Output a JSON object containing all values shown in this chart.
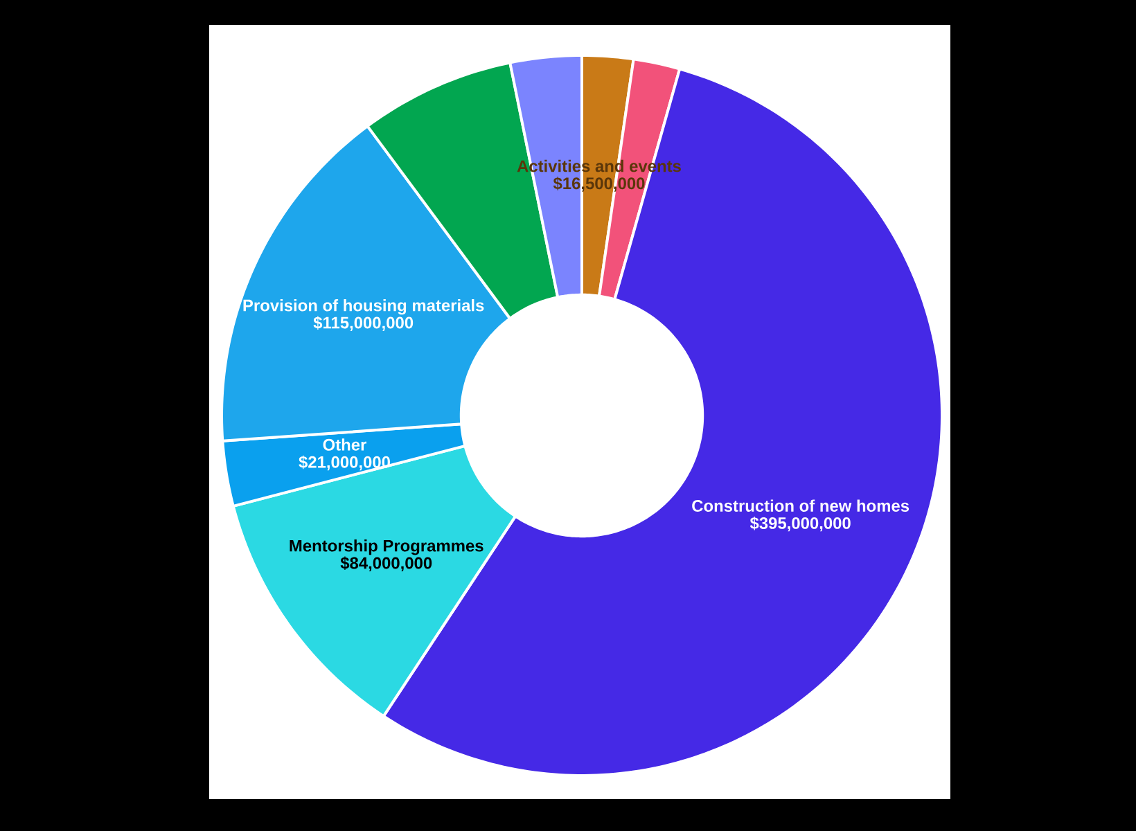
{
  "chart_data": {
    "type": "donut",
    "categories": [
      "Activities and events",
      null,
      "Construction of new homes",
      "Mentorship Programmes",
      "Other",
      "Provision of housing materials",
      null,
      null
    ],
    "values": [
      16500000,
      15000000,
      395000000,
      84000000,
      21000000,
      115000000,
      50000000,
      23000000
    ],
    "colors": [
      "#c97a17",
      "#f2527a",
      "#4529e6",
      "#2bd9e3",
      "#0aa0ee",
      "#1ea6ec",
      "#02a650",
      "#7b84fe"
    ],
    "value_labels": [
      "$16,500,000",
      null,
      "$395,000,000",
      "$84,000,000",
      "$21,000,000",
      "$115,000,000",
      null,
      null
    ]
  }
}
